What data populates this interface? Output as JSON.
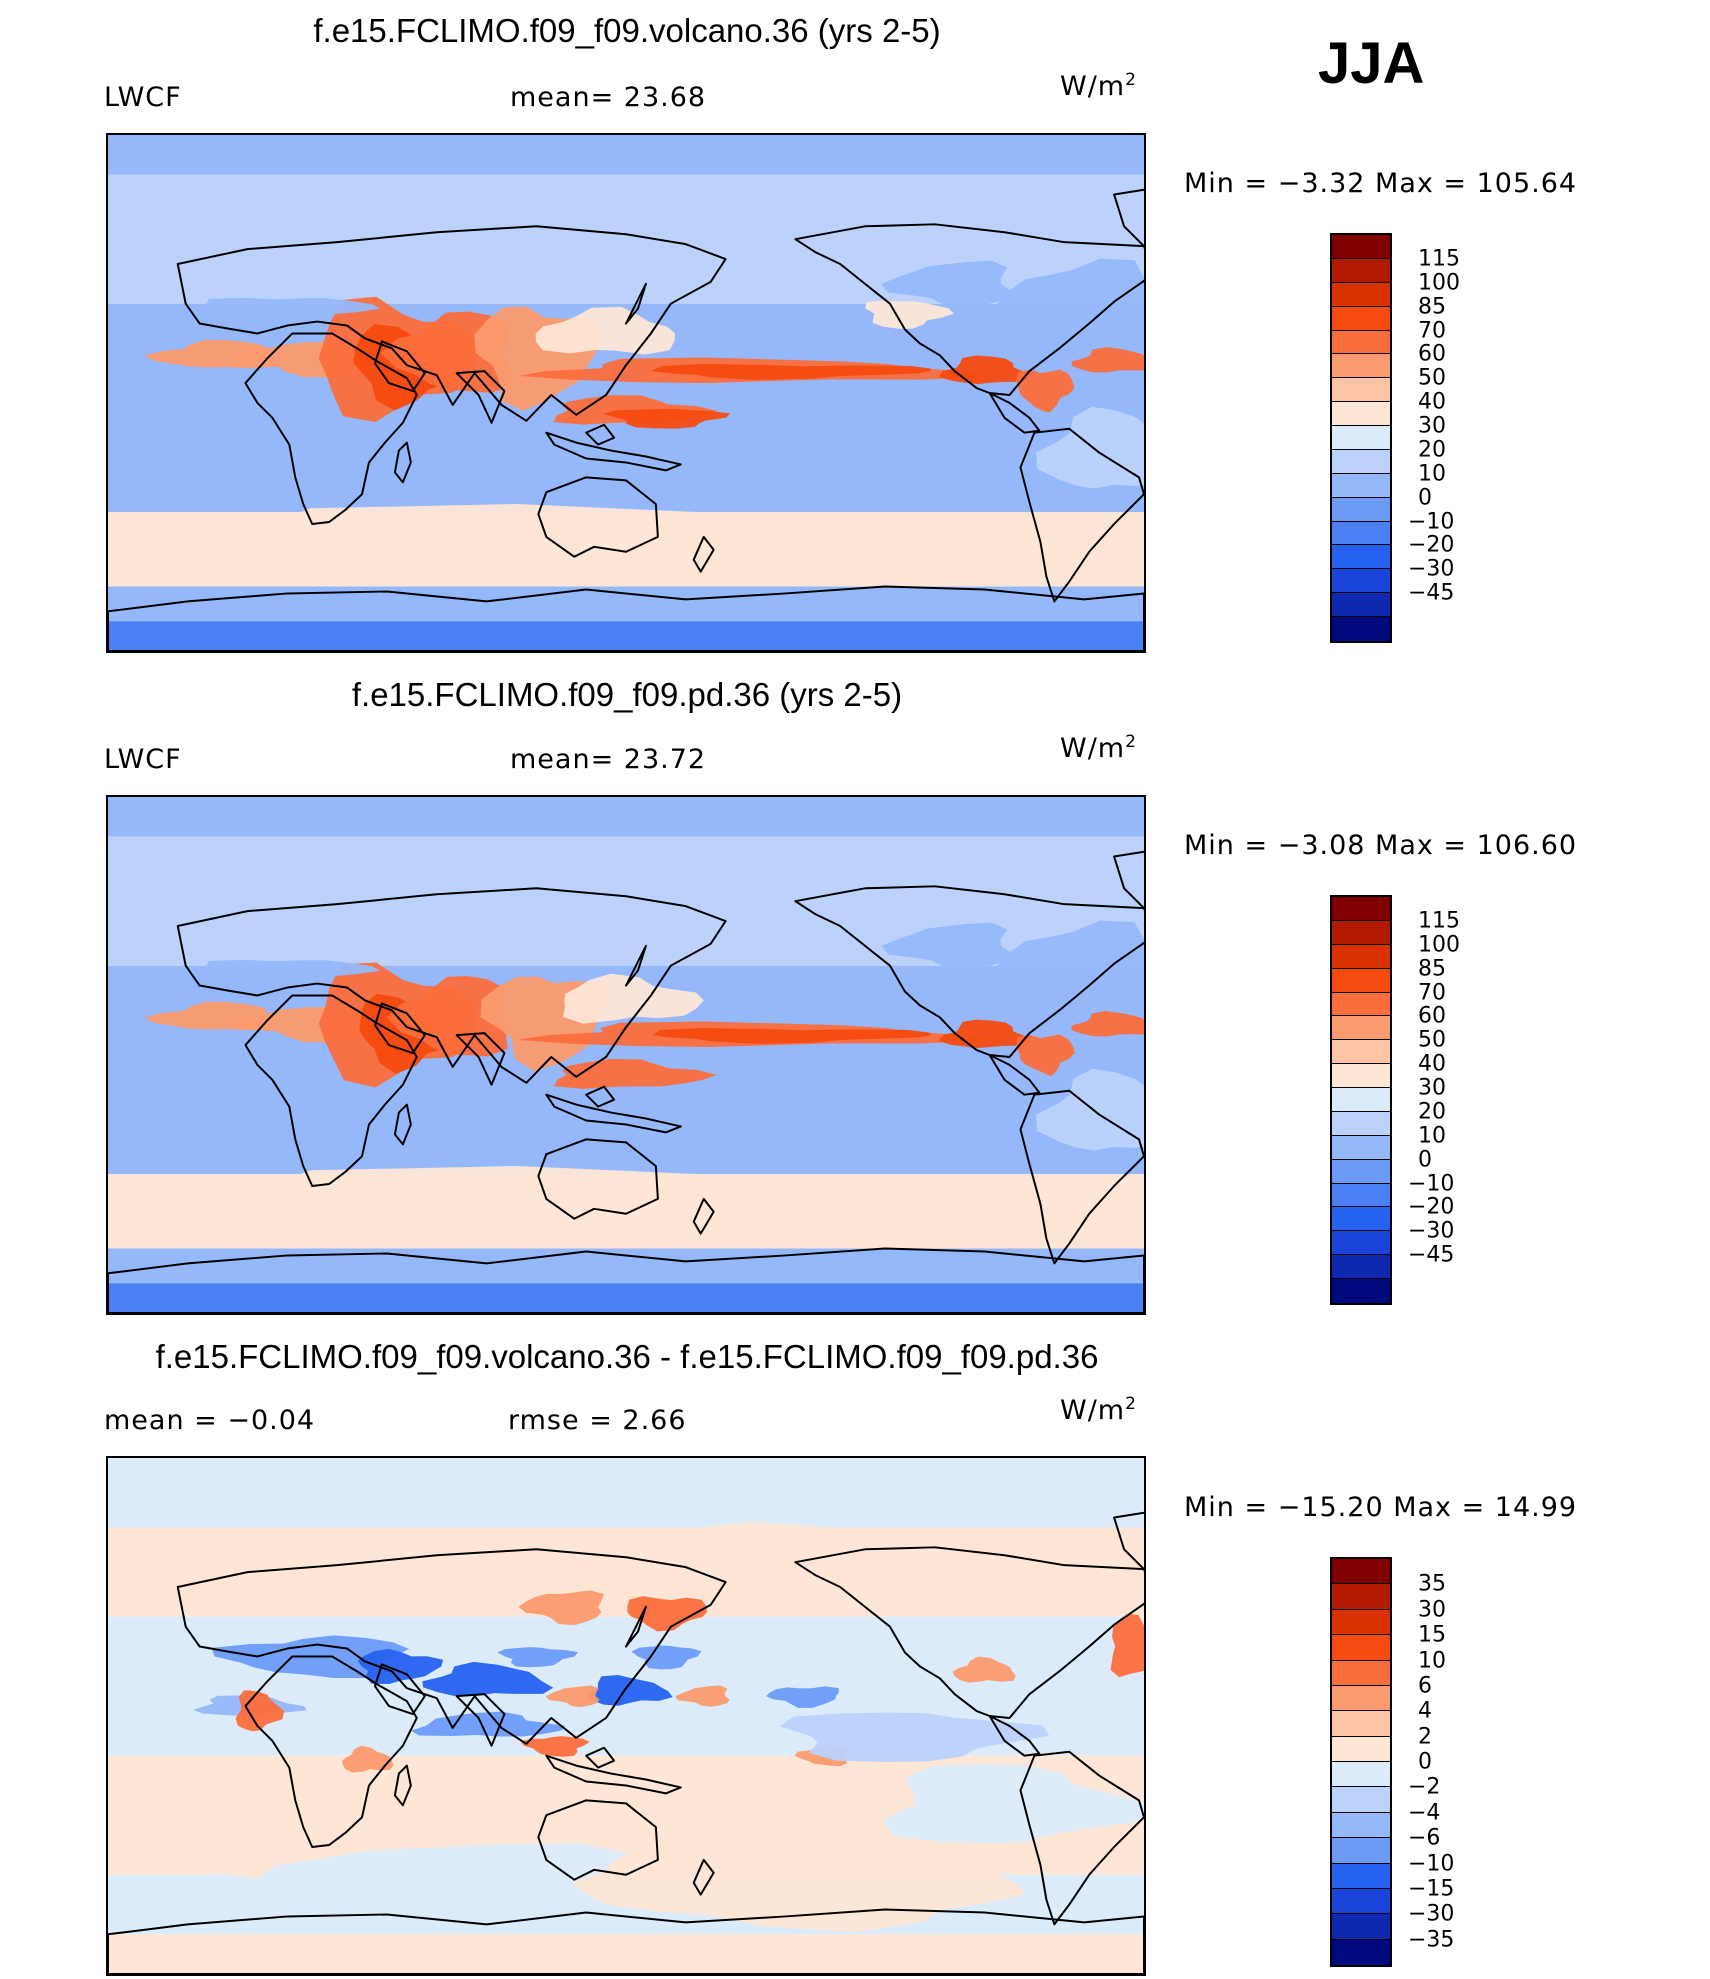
{
  "season": "JJA",
  "panels": [
    {
      "id": "volcano",
      "title": "f.e15.FCLIMO.f09_f09.volcano.36 (yrs 2-5)",
      "left_label": "LWCF",
      "mid_label": "mean=   23.68",
      "units": "W/m",
      "units_sup": "2",
      "minmax": "Min  =   −3.32  Max  =  105.64",
      "colorbar_levels": [
        "115",
        "100",
        "85",
        "70",
        "60",
        "50",
        "40",
        "30",
        "20",
        "10",
        "0",
        "−10",
        "−20",
        "−30",
        "−45"
      ],
      "palette": "abs"
    },
    {
      "id": "pd",
      "title": "f.e15.FCLIMO.f09_f09.pd.36 (yrs 2-5)",
      "left_label": "LWCF",
      "mid_label": "mean=   23.72",
      "units": "W/m",
      "units_sup": "2",
      "minmax": "Min  =   −3.08  Max  =  106.60",
      "colorbar_levels": [
        "115",
        "100",
        "85",
        "70",
        "60",
        "50",
        "40",
        "30",
        "20",
        "10",
        "0",
        "−10",
        "−20",
        "−30",
        "−45"
      ],
      "palette": "abs"
    },
    {
      "id": "diff",
      "title": "f.e15.FCLIMO.f09_f09.volcano.36 - f.e15.FCLIMO.f09_f09.pd.36",
      "left_label": "mean  =    −0.04",
      "mid_label": "rmse  =     2.66",
      "units": "W/m",
      "units_sup": "2",
      "minmax": "Min  = −15.20  Max  =   14.99",
      "colorbar_levels": [
        "35",
        "30",
        "15",
        "10",
        "6",
        "4",
        "2",
        "0",
        "−2",
        "−4",
        "−6",
        "−10",
        "−15",
        "−30",
        "−35"
      ],
      "palette": "diff"
    }
  ],
  "colors": {
    "abs": [
      "#800000",
      "#b11a00",
      "#d93200",
      "#f54a10",
      "#fb6e3c",
      "#fb9a6e",
      "#fdc5a6",
      "#fde6d6",
      "#dcebfa",
      "#bcd2fb",
      "#95b8fb",
      "#6b9bf7",
      "#4a80f3",
      "#2562f0",
      "#1a44d7",
      "#0e29b0",
      "#000a7e"
    ],
    "diff": [
      "#800000",
      "#b11a00",
      "#d93200",
      "#f54a10",
      "#fb6e3c",
      "#fb9a6e",
      "#fdc5a6",
      "#fde6d6",
      "#dcebfa",
      "#bcd2fb",
      "#95b8fb",
      "#6b9bf7",
      "#2562f0",
      "#1a44d7",
      "#0e29b0",
      "#000a7e"
    ]
  }
}
